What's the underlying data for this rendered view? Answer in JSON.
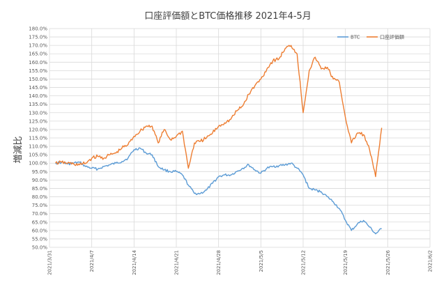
{
  "chart_data": {
    "type": "line",
    "title": "口座評価額とBTC価格推移 2021年4-5月",
    "xlabel": "",
    "ylabel": "増減比",
    "ylim": [
      50,
      180
    ],
    "xlim": [
      "2021-03-31",
      "2021-06-02"
    ],
    "grid": true,
    "legend": "top-right",
    "y_tick_labels": [
      "50.0%",
      "55.0%",
      "60.0%",
      "65.0%",
      "70.0%",
      "75.0%",
      "80.0%",
      "85.0%",
      "90.0%",
      "95.0%",
      "100.0%",
      "105.0%",
      "110.0%",
      "115.0%",
      "120.0%",
      "125.0%",
      "130.0%",
      "135.0%",
      "140.0%",
      "145.0%",
      "150.0%",
      "155.0%",
      "160.0%",
      "165.0%",
      "170.0%",
      "175.0%",
      "180.0%"
    ],
    "x_tick_labels": [
      "2021/3/31",
      "2021/4/7",
      "2021/4/14",
      "2021/4/21",
      "2021/4/28",
      "2021/5/5",
      "2021/5/12",
      "2021/5/19",
      "2021/5/26",
      "2021/6/2"
    ],
    "x_tick_dates": [
      "2021-03-31",
      "2021-04-07",
      "2021-04-14",
      "2021-04-21",
      "2021-04-28",
      "2021-05-05",
      "2021-05-12",
      "2021-05-19",
      "2021-05-26",
      "2021-06-02"
    ],
    "series": [
      {
        "name": "BTC",
        "color": "#5b9bd5",
        "points": [
          [
            "2021-04-01",
            100
          ],
          [
            "2021-04-02",
            100.5
          ],
          [
            "2021-04-03",
            99.5
          ],
          [
            "2021-04-04",
            100
          ],
          [
            "2021-04-05",
            100.5
          ],
          [
            "2021-04-06",
            98
          ],
          [
            "2021-04-07",
            97
          ],
          [
            "2021-04-08",
            96.5
          ],
          [
            "2021-04-09",
            98
          ],
          [
            "2021-04-10",
            99
          ],
          [
            "2021-04-11",
            100
          ],
          [
            "2021-04-12",
            101
          ],
          [
            "2021-04-13",
            103
          ],
          [
            "2021-04-14",
            108
          ],
          [
            "2021-04-15",
            109
          ],
          [
            "2021-04-16",
            106
          ],
          [
            "2021-04-17",
            105
          ],
          [
            "2021-04-18",
            98
          ],
          [
            "2021-04-19",
            96
          ],
          [
            "2021-04-20",
            95
          ],
          [
            "2021-04-21",
            95
          ],
          [
            "2021-04-22",
            93
          ],
          [
            "2021-04-23",
            87
          ],
          [
            "2021-04-24",
            82
          ],
          [
            "2021-04-25",
            82
          ],
          [
            "2021-04-26",
            84
          ],
          [
            "2021-04-27",
            88
          ],
          [
            "2021-04-28",
            92
          ],
          [
            "2021-04-29",
            93
          ],
          [
            "2021-04-30",
            93
          ],
          [
            "2021-05-01",
            95
          ],
          [
            "2021-05-02",
            97
          ],
          [
            "2021-05-03",
            99
          ],
          [
            "2021-05-04",
            96
          ],
          [
            "2021-05-05",
            94
          ],
          [
            "2021-05-06",
            97
          ],
          [
            "2021-05-07",
            98
          ],
          [
            "2021-05-08",
            98.5
          ],
          [
            "2021-05-09",
            99
          ],
          [
            "2021-05-10",
            100
          ],
          [
            "2021-05-11",
            97
          ],
          [
            "2021-05-12",
            93
          ],
          [
            "2021-05-13",
            85
          ],
          [
            "2021-05-14",
            84
          ],
          [
            "2021-05-15",
            83
          ],
          [
            "2021-05-16",
            80
          ],
          [
            "2021-05-17",
            77
          ],
          [
            "2021-05-18",
            73
          ],
          [
            "2021-05-19",
            66
          ],
          [
            "2021-05-20",
            60
          ],
          [
            "2021-05-21",
            64
          ],
          [
            "2021-05-22",
            66
          ],
          [
            "2021-05-23",
            62
          ],
          [
            "2021-05-24",
            58
          ],
          [
            "2021-05-25",
            61
          ]
        ]
      },
      {
        "name": "口座評価額",
        "color": "#ed7d31",
        "points": [
          [
            "2021-04-01",
            100
          ],
          [
            "2021-04-02",
            100.5
          ],
          [
            "2021-04-03",
            100
          ],
          [
            "2021-04-04",
            99.5
          ],
          [
            "2021-04-05",
            99
          ],
          [
            "2021-04-06",
            100
          ],
          [
            "2021-04-07",
            103
          ],
          [
            "2021-04-08",
            104
          ],
          [
            "2021-04-09",
            103
          ],
          [
            "2021-04-10",
            105
          ],
          [
            "2021-04-11",
            106
          ],
          [
            "2021-04-12",
            109
          ],
          [
            "2021-04-13",
            111
          ],
          [
            "2021-04-14",
            116
          ],
          [
            "2021-04-15",
            119
          ],
          [
            "2021-04-16",
            122
          ],
          [
            "2021-04-17",
            122
          ],
          [
            "2021-04-18",
            112
          ],
          [
            "2021-04-19",
            120
          ],
          [
            "2021-04-20",
            114
          ],
          [
            "2021-04-21",
            116
          ],
          [
            "2021-04-22",
            119
          ],
          [
            "2021-04-23",
            97
          ],
          [
            "2021-04-24",
            112
          ],
          [
            "2021-04-25",
            113
          ],
          [
            "2021-04-26",
            115
          ],
          [
            "2021-04-27",
            118
          ],
          [
            "2021-04-28",
            122
          ],
          [
            "2021-04-29",
            124
          ],
          [
            "2021-04-30",
            126
          ],
          [
            "2021-05-01",
            131
          ],
          [
            "2021-05-02",
            134
          ],
          [
            "2021-05-03",
            141
          ],
          [
            "2021-05-04",
            146
          ],
          [
            "2021-05-05",
            150
          ],
          [
            "2021-05-06",
            156
          ],
          [
            "2021-05-07",
            161
          ],
          [
            "2021-05-08",
            162
          ],
          [
            "2021-05-09",
            168
          ],
          [
            "2021-05-10",
            170
          ],
          [
            "2021-05-11",
            165
          ],
          [
            "2021-05-12",
            130
          ],
          [
            "2021-05-13",
            155
          ],
          [
            "2021-05-14",
            163
          ],
          [
            "2021-05-15",
            156
          ],
          [
            "2021-05-16",
            157
          ],
          [
            "2021-05-17",
            150
          ],
          [
            "2021-05-18",
            148
          ],
          [
            "2021-05-19",
            127
          ],
          [
            "2021-05-20",
            112
          ],
          [
            "2021-05-21",
            118
          ],
          [
            "2021-05-22",
            117
          ],
          [
            "2021-05-23",
            108
          ],
          [
            "2021-05-24",
            92
          ],
          [
            "2021-05-25",
            121
          ]
        ]
      }
    ]
  }
}
